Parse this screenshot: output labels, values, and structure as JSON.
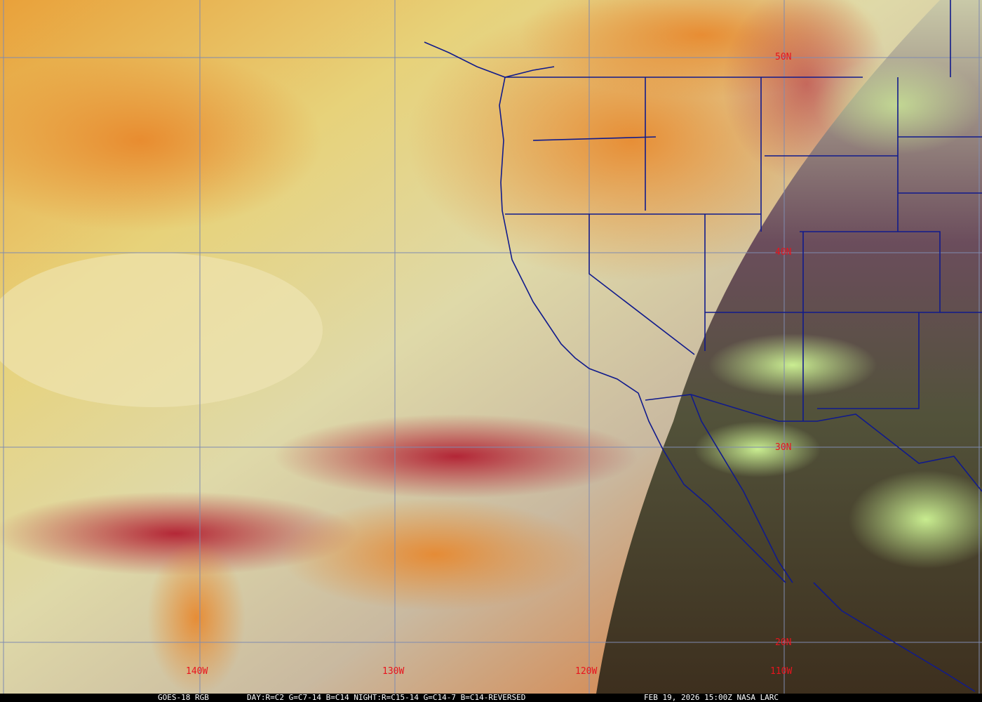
{
  "map": {
    "grid_color": "#7f8bb0",
    "border_color": "#101a8c",
    "label_color": "#e8141e",
    "lat_labels": [
      "50N",
      "40N",
      "30N",
      "20N"
    ],
    "lon_labels": [
      "140W",
      "130W",
      "120W",
      "110W"
    ]
  },
  "caption": {
    "satellite": "GOES-18 RGB",
    "bands": "DAY:R=C2 G=C7-14 B=C14 NIGHT:R=C15-14 G=C14-7 B=C14-REVERSED",
    "timestamp": "FEB 19, 2026 15:00Z NASA LARC"
  }
}
